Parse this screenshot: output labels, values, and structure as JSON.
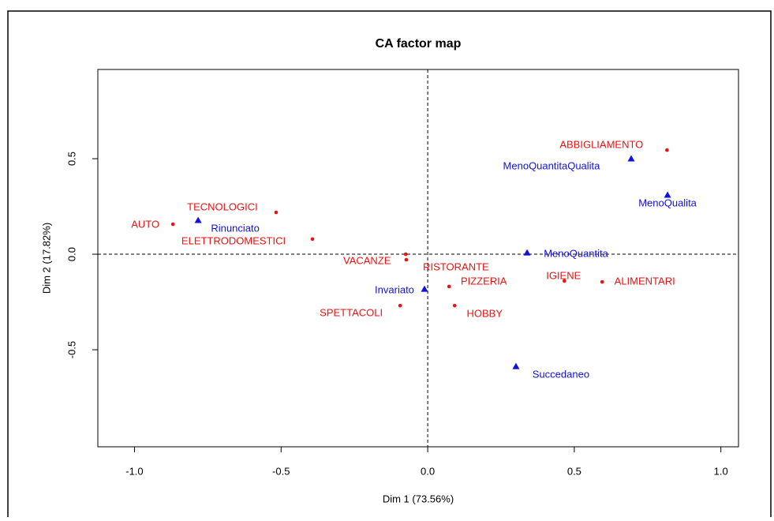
{
  "chart_data": {
    "type": "scatter",
    "title": "CA factor map",
    "xlabel": "Dim 1 (73.56%)",
    "ylabel": "Dim 2 (17.82%)",
    "xlim": [
      -1.125,
      1.06
    ],
    "ylim": [
      -1.008,
      0.967
    ],
    "xticks": [
      {
        "value": -1.0,
        "label": "-1.0"
      },
      -0.5,
      {
        "value": 0.0,
        "label": "0.0"
      },
      0.5,
      {
        "value": 1.0,
        "label": "1.0"
      }
    ],
    "yticks": [
      -0.5,
      {
        "value": 0.0,
        "label": "0.0"
      },
      0.5
    ],
    "reference_lines": {
      "x": 0,
      "y": 0
    },
    "series": [
      {
        "color": "#ee1111",
        "marker": "circle",
        "labels": [
          "ABBIGLIAMENTO",
          "TECNOLOGICI",
          "AUTO",
          "ELETTRODOMESTICI",
          "VACANZE",
          "RISTORANTE",
          "PIZZERIA",
          "IGIENE",
          "ALIMENTARI",
          "SPETTACOLI",
          "HOBBY"
        ],
        "x": [
          0.816,
          -0.517,
          -0.869,
          -0.393,
          -0.075,
          -0.073,
          0.073,
          0.466,
          0.595,
          -0.094,
          0.092
        ],
        "values": [
          0.545,
          0.219,
          0.157,
          0.079,
          0.0,
          -0.029,
          -0.169,
          -0.14,
          -0.145,
          -0.269,
          -0.269
        ]
      },
      {
        "color": "#1111dd",
        "marker": "triangle",
        "labels": [
          "MenoQuantitaQualita",
          "MenoQualita",
          "Rinunciato",
          "MenoQuantita",
          "Invariato",
          "Succedaneo"
        ],
        "x": [
          0.694,
          0.818,
          -0.783,
          0.339,
          -0.011,
          0.301
        ],
        "values": [
          0.5,
          0.31,
          0.178,
          0.008,
          -0.182,
          -0.587
        ]
      }
    ]
  }
}
